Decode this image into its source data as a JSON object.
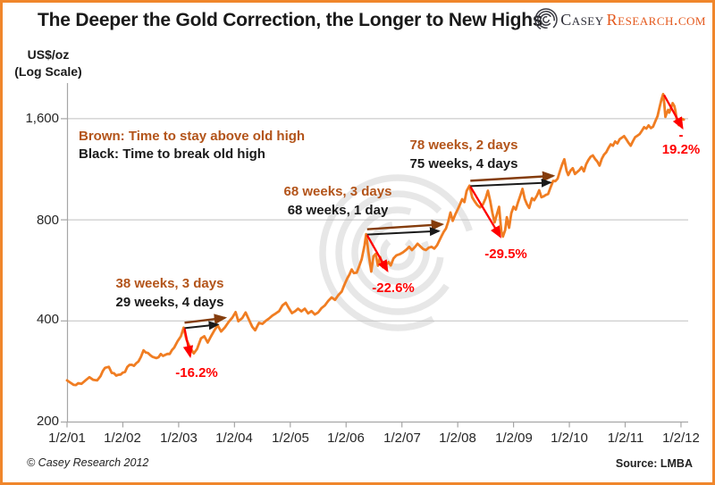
{
  "header": {
    "title": "The Deeper the Gold Correction, the Longer to New Highs",
    "logo": {
      "casey": "Casey",
      "research": "Research.com"
    }
  },
  "axis_unit": {
    "line1": "US$/oz",
    "line2": "(Log Scale)"
  },
  "footer": {
    "copyright": "© Casey Research 2012",
    "source": "Source: LMBA"
  },
  "colors": {
    "line_orange": "#F07D22",
    "brown_text": "#B3541A",
    "brown_arrow": "#843C0C",
    "black_arrow": "#1a1a1a",
    "red": "#FF0000",
    "grid": "#BFBFBF",
    "axis": "#A6A6A6",
    "frame_border": "#F0862B",
    "logo_orange": "#E4581C",
    "logo_dark": "#2e2e38",
    "watermark": "#E7E7E7"
  },
  "chart_data": {
    "type": "line",
    "title": "The Deeper the Gold Correction, the Longer to New Highs",
    "ylabel": "US$/oz (Log Scale)",
    "yscale": "log",
    "ylim": [
      200,
      2000
    ],
    "yticks": [
      "1,600",
      "800",
      "400",
      "200"
    ],
    "ytick_values": [
      1600,
      800,
      400,
      200
    ],
    "xticks": [
      "1/2/01",
      "1/2/02",
      "1/2/03",
      "1/2/04",
      "1/2/05",
      "1/2/06",
      "1/2/07",
      "1/2/08",
      "1/2/09",
      "1/2/10",
      "1/2/11",
      "1/2/12"
    ],
    "grid": "horizontal",
    "legend": {
      "brown_line": "Brown: Time to stay above old high",
      "black_line": "Black: Time to break old high"
    },
    "source": "Source: LMBA",
    "series": [
      {
        "name": "Gold price (US$/oz, log scale)",
        "color": "#F07D22",
        "points": [
          [
            0,
            266
          ],
          [
            0.06,
            262
          ],
          [
            0.12,
            258
          ],
          [
            0.2,
            261
          ],
          [
            0.26,
            260
          ],
          [
            0.33,
            266
          ],
          [
            0.4,
            272
          ],
          [
            0.47,
            267
          ],
          [
            0.54,
            266
          ],
          [
            0.6,
            274
          ],
          [
            0.68,
            290
          ],
          [
            0.75,
            292
          ],
          [
            0.8,
            280
          ],
          [
            0.88,
            275
          ],
          [
            0.96,
            277
          ],
          [
            1.04,
            282
          ],
          [
            1.12,
            296
          ],
          [
            1.2,
            294
          ],
          [
            1.28,
            303
          ],
          [
            1.37,
            327
          ],
          [
            1.45,
            321
          ],
          [
            1.53,
            313
          ],
          [
            1.6,
            310
          ],
          [
            1.68,
            319
          ],
          [
            1.76,
            317
          ],
          [
            1.84,
            319
          ],
          [
            1.92,
            333
          ],
          [
            1.98,
            348
          ],
          [
            2.04,
            360
          ],
          [
            2.09,
            382
          ],
          [
            2.14,
            352
          ],
          [
            2.2,
            335
          ],
          [
            2.27,
            320
          ],
          [
            2.33,
            330
          ],
          [
            2.4,
            355
          ],
          [
            2.46,
            360
          ],
          [
            2.52,
            345
          ],
          [
            2.58,
            360
          ],
          [
            2.64,
            375
          ],
          [
            2.7,
            388
          ],
          [
            2.76,
            372
          ],
          [
            2.83,
            383
          ],
          [
            2.9,
            398
          ],
          [
            2.96,
            409
          ],
          [
            3.02,
            425
          ],
          [
            3.07,
            399
          ],
          [
            3.14,
            408
          ],
          [
            3.2,
            424
          ],
          [
            3.26,
            403
          ],
          [
            3.32,
            384
          ],
          [
            3.37,
            375
          ],
          [
            3.44,
            395
          ],
          [
            3.5,
            392
          ],
          [
            3.56,
            400
          ],
          [
            3.62,
            407
          ],
          [
            3.68,
            415
          ],
          [
            3.74,
            421
          ],
          [
            3.8,
            428
          ],
          [
            3.86,
            445
          ],
          [
            3.92,
            453
          ],
          [
            3.97,
            438
          ],
          [
            4.03,
            422
          ],
          [
            4.09,
            428
          ],
          [
            4.14,
            435
          ],
          [
            4.2,
            427
          ],
          [
            4.26,
            435
          ],
          [
            4.32,
            421
          ],
          [
            4.38,
            428
          ],
          [
            4.44,
            418
          ],
          [
            4.5,
            424
          ],
          [
            4.56,
            437
          ],
          [
            4.62,
            445
          ],
          [
            4.68,
            459
          ],
          [
            4.74,
            470
          ],
          [
            4.8,
            462
          ],
          [
            4.86,
            477
          ],
          [
            4.92,
            489
          ],
          [
            4.97,
            513
          ],
          [
            5.02,
            535
          ],
          [
            5.06,
            550
          ],
          [
            5.1,
            569
          ],
          [
            5.14,
            555
          ],
          [
            5.19,
            557
          ],
          [
            5.24,
            585
          ],
          [
            5.28,
            611
          ],
          [
            5.33,
            672
          ],
          [
            5.36,
            725
          ],
          [
            5.4,
            640
          ],
          [
            5.45,
            561
          ],
          [
            5.49,
            623
          ],
          [
            5.53,
            633
          ],
          [
            5.57,
            584
          ],
          [
            5.61,
            620
          ],
          [
            5.66,
            578
          ],
          [
            5.71,
            586
          ],
          [
            5.76,
            599
          ],
          [
            5.8,
            585
          ],
          [
            5.85,
            614
          ],
          [
            5.9,
            627
          ],
          [
            5.96,
            632
          ],
          [
            6.02,
            640
          ],
          [
            6.08,
            652
          ],
          [
            6.13,
            665
          ],
          [
            6.18,
            650
          ],
          [
            6.23,
            663
          ],
          [
            6.28,
            679
          ],
          [
            6.33,
            667
          ],
          [
            6.38,
            655
          ],
          [
            6.43,
            650
          ],
          [
            6.48,
            661
          ],
          [
            6.53,
            665
          ],
          [
            6.58,
            657
          ],
          [
            6.63,
            672
          ],
          [
            6.67,
            693
          ],
          [
            6.71,
            715
          ],
          [
            6.75,
            737
          ],
          [
            6.79,
            754
          ],
          [
            6.83,
            790
          ],
          [
            6.87,
            841
          ],
          [
            6.91,
            794
          ],
          [
            6.96,
            833
          ],
          [
            7,
            860
          ],
          [
            7.04,
            889
          ],
          [
            7.08,
            922
          ],
          [
            7.12,
            903
          ],
          [
            7.16,
            975
          ],
          [
            7.21,
            1011
          ],
          [
            7.26,
            933
          ],
          [
            7.3,
            909
          ],
          [
            7.35,
            885
          ],
          [
            7.4,
            871
          ],
          [
            7.45,
            889
          ],
          [
            7.5,
            928
          ],
          [
            7.54,
            977
          ],
          [
            7.58,
            913
          ],
          [
            7.62,
            839
          ],
          [
            7.66,
            786
          ],
          [
            7.7,
            830
          ],
          [
            7.74,
            875
          ],
          [
            7.78,
            740
          ],
          [
            7.81,
            713
          ],
          [
            7.85,
            745
          ],
          [
            7.88,
            815
          ],
          [
            7.92,
            757
          ],
          [
            7.96,
            837
          ],
          [
            8,
            875
          ],
          [
            8.04,
            858
          ],
          [
            8.08,
            902
          ],
          [
            8.12,
            943
          ],
          [
            8.16,
            989
          ],
          [
            8.2,
            924
          ],
          [
            8.24,
            890
          ],
          [
            8.28,
            868
          ],
          [
            8.33,
            928
          ],
          [
            8.37,
            915
          ],
          [
            8.42,
            945
          ],
          [
            8.46,
            980
          ],
          [
            8.5,
            934
          ],
          [
            8.54,
            940
          ],
          [
            8.58,
            949
          ],
          [
            8.62,
            955
          ],
          [
            8.66,
            996
          ],
          [
            8.71,
            1045
          ],
          [
            8.75,
            1043
          ],
          [
            8.79,
            1060
          ],
          [
            8.83,
            1115
          ],
          [
            8.87,
            1168
          ],
          [
            8.91,
            1212
          ],
          [
            8.95,
            1120
          ],
          [
            8.98,
            1087
          ],
          [
            9.02,
            1120
          ],
          [
            9.06,
            1140
          ],
          [
            9.1,
            1095
          ],
          [
            9.14,
            1110
          ],
          [
            9.18,
            1125
          ],
          [
            9.22,
            1148
          ],
          [
            9.26,
            1115
          ],
          [
            9.3,
            1170
          ],
          [
            9.34,
            1205
          ],
          [
            9.38,
            1232
          ],
          [
            9.42,
            1244
          ],
          [
            9.46,
            1215
          ],
          [
            9.5,
            1193
          ],
          [
            9.54,
            1160
          ],
          [
            9.58,
            1215
          ],
          [
            9.62,
            1250
          ],
          [
            9.66,
            1271
          ],
          [
            9.7,
            1310
          ],
          [
            9.74,
            1342
          ],
          [
            9.78,
            1330
          ],
          [
            9.82,
            1369
          ],
          [
            9.86,
            1350
          ],
          [
            9.9,
            1390
          ],
          [
            9.94,
            1405
          ],
          [
            9.98,
            1420
          ],
          [
            10.02,
            1390
          ],
          [
            10.06,
            1356
          ],
          [
            10.1,
            1330
          ],
          [
            10.14,
            1372
          ],
          [
            10.18,
            1410
          ],
          [
            10.22,
            1424
          ],
          [
            10.26,
            1440
          ],
          [
            10.3,
            1473
          ],
          [
            10.34,
            1510
          ],
          [
            10.38,
            1495
          ],
          [
            10.42,
            1528
          ],
          [
            10.46,
            1500
          ],
          [
            10.5,
            1515
          ],
          [
            10.54,
            1572
          ],
          [
            10.58,
            1628
          ],
          [
            10.62,
            1740
          ],
          [
            10.65,
            1825
          ],
          [
            10.68,
            1895
          ],
          [
            10.7,
            1780
          ],
          [
            10.72,
            1620
          ],
          [
            10.74,
            1655
          ],
          [
            10.77,
            1700
          ],
          [
            10.79,
            1668
          ],
          [
            10.82,
            1720
          ],
          [
            10.85,
            1780
          ],
          [
            10.88,
            1745
          ],
          [
            10.9,
            1690
          ],
          [
            10.92,
            1600
          ],
          [
            10.94,
            1565
          ],
          [
            10.96,
            1531
          ],
          [
            10.99,
            1574
          ],
          [
            11.02,
            1598
          ],
          [
            11.05,
            1590
          ]
        ]
      }
    ],
    "corrections": [
      {
        "stay_label": "38 weeks, 3 days",
        "break_label": "29 weeks, 4 days",
        "decline_label": "-16.2%",
        "peak_t": 2.09,
        "peak_value": 382,
        "trough_t": 2.27,
        "trough_value": 320,
        "break_t": 2.7,
        "stay_t": 2.83
      },
      {
        "stay_label": "68 weeks, 3 days",
        "break_label": "68 weeks, 1 day",
        "decline_label": "-22.6%",
        "peak_t": 5.36,
        "peak_value": 725,
        "trough_t": 5.45,
        "trough_value": 561,
        "break_t": 6.66,
        "stay_t": 6.72
      },
      {
        "stay_label": "78 weeks, 2 days",
        "break_label": "75 weeks, 4 days",
        "decline_label": "-29.5%",
        "peak_t": 7.21,
        "peak_value": 1011,
        "trough_t": 7.81,
        "trough_value": 713,
        "break_t": 8.66,
        "stay_t": 8.71
      },
      {
        "decline_label": "-19.2%",
        "decline_label_line1": "-",
        "decline_label_line2": "19.2%",
        "peak_t": 10.68,
        "peak_value": 1895,
        "trough_t": 10.96,
        "trough_value": 1531
      }
    ]
  }
}
